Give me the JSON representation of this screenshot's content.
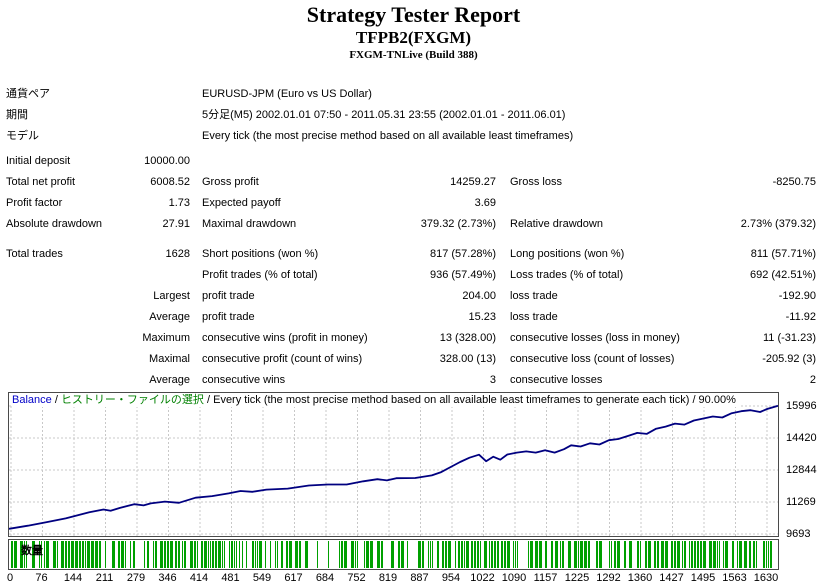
{
  "header": {
    "title": "Strategy Tester Report",
    "subtitle": "TFPB2(FXGM)",
    "build": "FXGM-TNLive (Build 388)"
  },
  "summary": {
    "rows": [
      {
        "l1": "通貨ペア",
        "wide": "EURUSD-JPM (Euro vs US Dollar)"
      },
      {
        "l1": "期間",
        "wide": "5分足(M5) 2002.01.01 07:50 - 2011.05.31 23:55 (2002.01.01 - 2011.06.01)"
      },
      {
        "l1": "モデル",
        "wide": "Every tick (the most precise method based on all available least timeframes)"
      },
      {
        "l1": "Initial deposit",
        "v1": "10000.00",
        "spacer": "mt4"
      },
      {
        "l1": "Total net profit",
        "v1": "6008.52",
        "l2": "Gross profit",
        "v2": "14259.27",
        "l3": "Gross loss",
        "v3": "-8250.75"
      },
      {
        "l1": "Profit factor",
        "v1": "1.73",
        "l2": "Expected payoff",
        "v2": "3.69"
      },
      {
        "l1": "Absolute drawdown",
        "v1": "27.91",
        "l2": "Maximal drawdown",
        "v2": "379.32 (2.73%)",
        "l3": "Relative drawdown",
        "v3": "2.73% (379.32)"
      },
      {
        "l1": "Total trades",
        "v1": "1628",
        "l2": "Short positions (won %)",
        "v2": "817 (57.28%)",
        "l3": "Long positions (won %)",
        "v3": "811 (57.71%)",
        "spacer": "mt9"
      },
      {
        "l2": "Profit trades (% of total)",
        "v2": "936 (57.49%)",
        "l3": "Loss trades (% of total)",
        "v3": "692 (42.51%)"
      },
      {
        "v1": "Largest",
        "l2": "profit trade",
        "v2": "204.00",
        "l3": "loss trade",
        "v3": "-192.90"
      },
      {
        "v1": "Average",
        "l2": "profit trade",
        "v2": "15.23",
        "l3": "loss trade",
        "v3": "-11.92"
      },
      {
        "v1": "Maximum",
        "l2": "consecutive wins (profit in money)",
        "v2": "13 (328.00)",
        "l3": "consecutive losses (loss in money)",
        "v3": "11 (-31.23)"
      },
      {
        "v1": "Maximal",
        "l2": "consecutive profit (count of wins)",
        "v2": "328.00 (13)",
        "l3": "consecutive loss (count of losses)",
        "v3": "-205.92 (3)"
      },
      {
        "v1": "Average",
        "l2": "consecutive wins",
        "v2": "3",
        "l3": "consecutive losses",
        "v3": "2"
      }
    ]
  },
  "chart_data": [
    {
      "type": "line",
      "name": "balance",
      "header_segments": [
        {
          "text": "Balance",
          "color": "#0000C8"
        },
        {
          "text": " / ",
          "color": "#000000"
        },
        {
          "text": "ヒストリー・ファイルの選択",
          "color": "#008000"
        },
        {
          "text": " / Every tick (the most precise method based on all available least timeframes to generate each tick) / 90.00%",
          "color": "#000000"
        }
      ],
      "x_range": [
        0,
        1628
      ],
      "y_ticks": [
        15996,
        14420,
        12844,
        11269,
        9693
      ],
      "line_color": "#000080",
      "grid_color": "#C8C8C8",
      "points": [
        [
          0,
          9950
        ],
        [
          40,
          10100
        ],
        [
          80,
          10280
        ],
        [
          120,
          10460
        ],
        [
          170,
          10760
        ],
        [
          200,
          10900
        ],
        [
          215,
          10840
        ],
        [
          235,
          10980
        ],
        [
          265,
          11160
        ],
        [
          285,
          11100
        ],
        [
          300,
          11200
        ],
        [
          330,
          11290
        ],
        [
          360,
          11230
        ],
        [
          395,
          11480
        ],
        [
          430,
          11560
        ],
        [
          465,
          11690
        ],
        [
          490,
          11810
        ],
        [
          515,
          11770
        ],
        [
          545,
          11880
        ],
        [
          590,
          11930
        ],
        [
          635,
          12080
        ],
        [
          675,
          12130
        ],
        [
          715,
          12130
        ],
        [
          750,
          12290
        ],
        [
          780,
          12390
        ],
        [
          800,
          12330
        ],
        [
          820,
          12440
        ],
        [
          860,
          12450
        ],
        [
          895,
          12580
        ],
        [
          915,
          12740
        ],
        [
          935,
          12990
        ],
        [
          955,
          13240
        ],
        [
          975,
          13450
        ],
        [
          995,
          13600
        ],
        [
          1010,
          13280
        ],
        [
          1025,
          13500
        ],
        [
          1040,
          13350
        ],
        [
          1055,
          13610
        ],
        [
          1075,
          13700
        ],
        [
          1095,
          13760
        ],
        [
          1115,
          13700
        ],
        [
          1135,
          13820
        ],
        [
          1155,
          13700
        ],
        [
          1175,
          13870
        ],
        [
          1190,
          14060
        ],
        [
          1210,
          14000
        ],
        [
          1230,
          14160
        ],
        [
          1250,
          14100
        ],
        [
          1270,
          14310
        ],
        [
          1290,
          14370
        ],
        [
          1310,
          14520
        ],
        [
          1330,
          14670
        ],
        [
          1350,
          14620
        ],
        [
          1370,
          14880
        ],
        [
          1390,
          14980
        ],
        [
          1410,
          15130
        ],
        [
          1430,
          15080
        ],
        [
          1450,
          15280
        ],
        [
          1470,
          15380
        ],
        [
          1490,
          15480
        ],
        [
          1510,
          15430
        ],
        [
          1530,
          15640
        ],
        [
          1550,
          15740
        ],
        [
          1570,
          15790
        ],
        [
          1590,
          15700
        ],
        [
          1605,
          15850
        ],
        [
          1628,
          16008
        ]
      ]
    },
    {
      "type": "bar",
      "name": "volume",
      "label": "数量",
      "bar_color": "#00A000",
      "bar_seed": 7,
      "x_ticks": [
        0,
        76,
        144,
        211,
        279,
        346,
        414,
        481,
        549,
        617,
        684,
        752,
        819,
        887,
        954,
        1022,
        1090,
        1157,
        1225,
        1292,
        1360,
        1427,
        1495,
        1563,
        1630
      ]
    }
  ]
}
